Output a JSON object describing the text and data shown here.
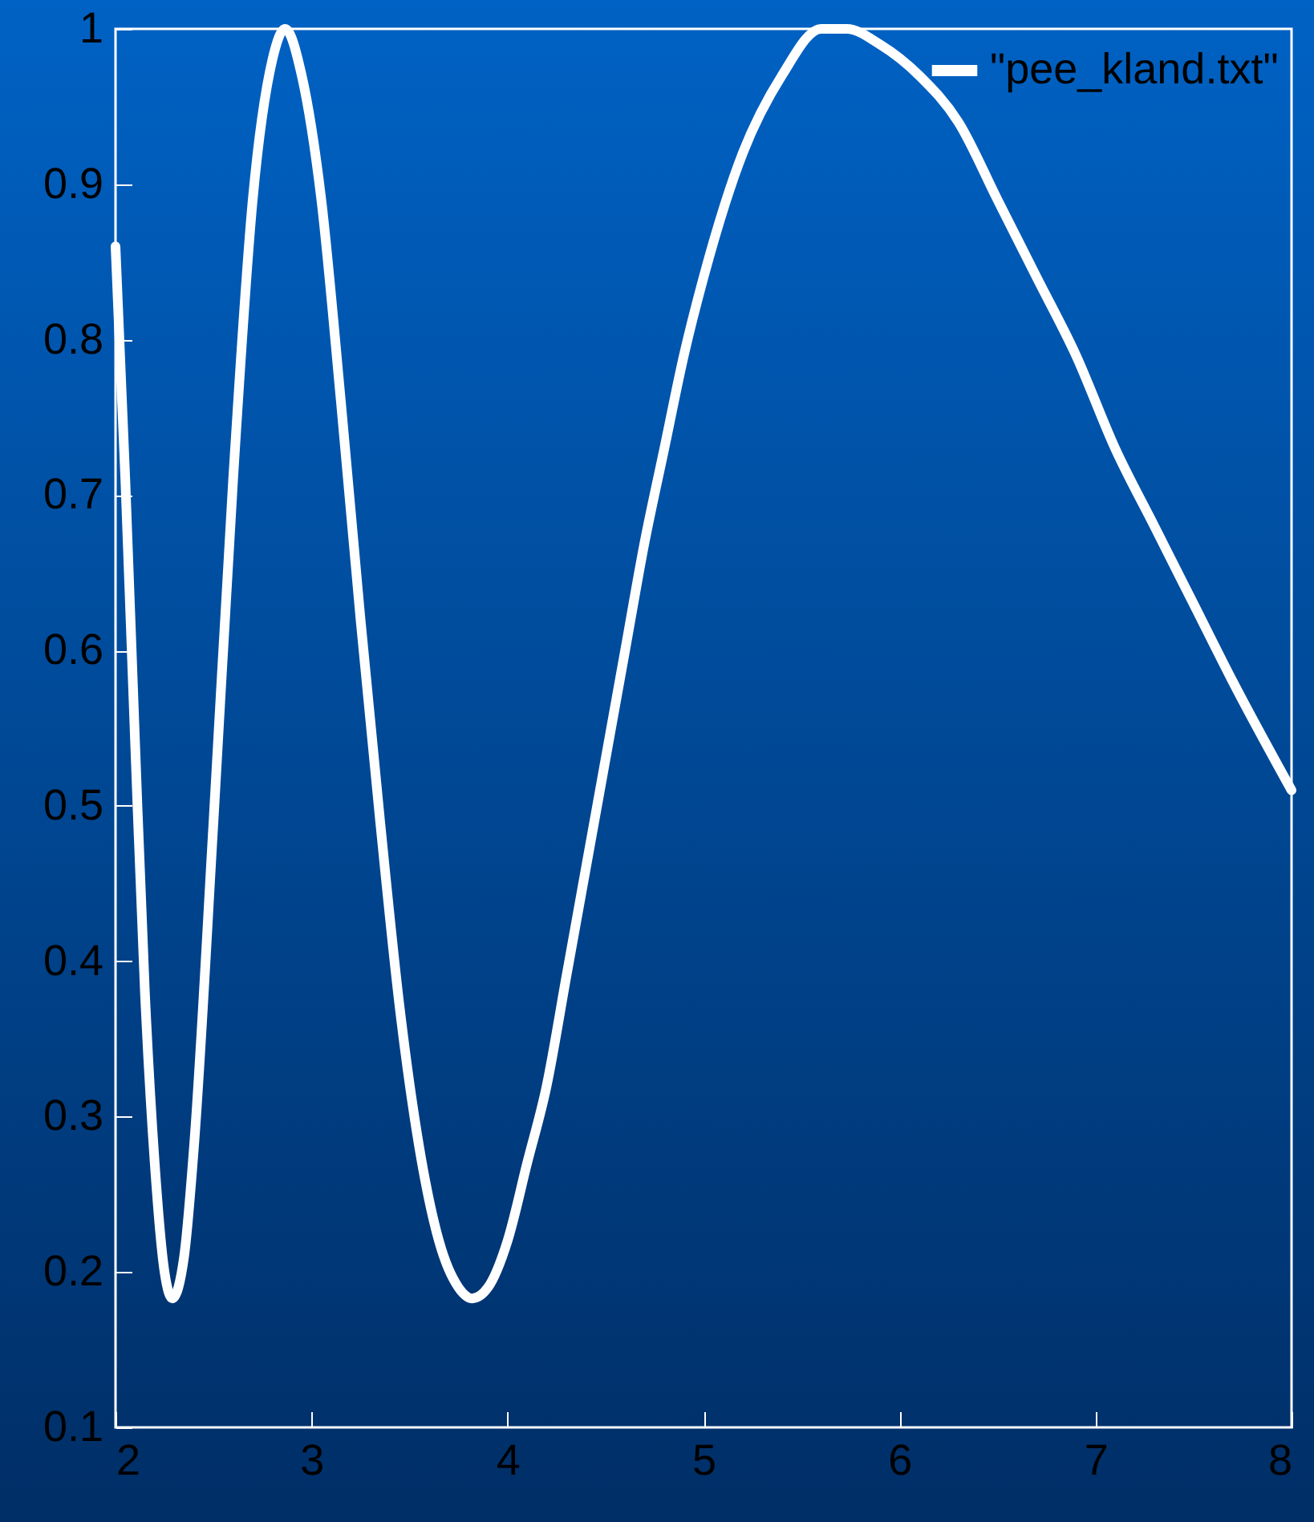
{
  "chart_data": {
    "type": "line",
    "series": [
      {
        "name": "\"pee_kland.txt\"",
        "color": "#ffffff",
        "x": [
          2.0,
          2.05,
          2.1,
          2.15,
          2.2,
          2.25,
          2.29,
          2.35,
          2.4,
          2.5,
          2.6,
          2.7,
          2.8,
          2.865,
          2.95,
          3.05,
          3.15,
          3.25,
          3.35,
          3.45,
          3.55,
          3.65,
          3.75,
          3.82,
          3.9,
          4.0,
          4.1,
          4.2,
          4.3,
          4.4,
          4.5,
          4.6,
          4.7,
          4.8,
          4.9,
          5.0,
          5.2,
          5.4,
          5.6,
          5.73,
          5.9,
          6.1,
          6.3,
          6.5,
          6.7,
          6.9,
          7.1,
          7.3,
          7.5,
          7.7,
          8.0
        ],
        "values": [
          0.86,
          0.71,
          0.54,
          0.38,
          0.27,
          0.2,
          0.183,
          0.21,
          0.28,
          0.49,
          0.71,
          0.89,
          0.98,
          1.0,
          0.97,
          0.89,
          0.76,
          0.62,
          0.49,
          0.37,
          0.28,
          0.22,
          0.19,
          0.183,
          0.19,
          0.22,
          0.27,
          0.32,
          0.39,
          0.46,
          0.53,
          0.6,
          0.67,
          0.73,
          0.79,
          0.84,
          0.92,
          0.97,
          1.0,
          1.0,
          0.99,
          0.97,
          0.94,
          0.89,
          0.84,
          0.79,
          0.73,
          0.68,
          0.63,
          0.58,
          0.51
        ]
      }
    ],
    "xlim": [
      2,
      8
    ],
    "ylim": [
      0.1,
      1
    ],
    "xticks": [
      2,
      3,
      4,
      5,
      6,
      7,
      8
    ],
    "yticks": [
      0.1,
      0.2,
      0.3,
      0.4,
      0.5,
      0.6,
      0.7,
      0.8,
      0.9,
      1
    ],
    "legend": "top right",
    "marker": "none",
    "line_style": "solid"
  }
}
